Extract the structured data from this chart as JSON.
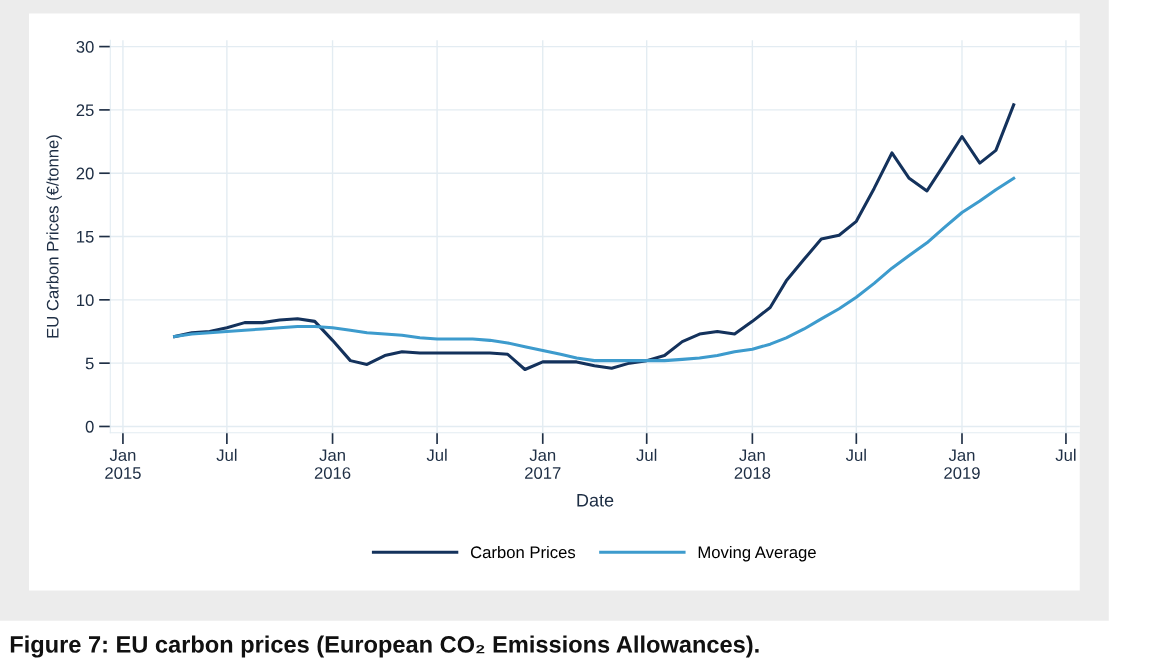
{
  "chart_data": {
    "type": "line",
    "title": "Figure 7: EU carbon prices (European CO₂ Emissions Allowances).",
    "xlabel": "Date",
    "ylabel": "EU Carbon Prices (€/tonne)",
    "x": [
      "2015-04",
      "2015-05",
      "2015-06",
      "2015-07",
      "2015-08",
      "2015-09",
      "2015-10",
      "2015-11",
      "2015-12",
      "2016-01",
      "2016-02",
      "2016-03",
      "2016-04",
      "2016-05",
      "2016-06",
      "2016-07",
      "2016-08",
      "2016-09",
      "2016-10",
      "2016-11",
      "2016-12",
      "2017-01",
      "2017-02",
      "2017-03",
      "2017-04",
      "2017-05",
      "2017-06",
      "2017-07",
      "2017-08",
      "2017-09",
      "2017-10",
      "2017-11",
      "2017-12",
      "2018-01",
      "2018-02",
      "2018-03",
      "2018-04",
      "2018-05",
      "2018-06",
      "2018-07",
      "2018-08",
      "2018-09",
      "2018-10",
      "2018-11",
      "2018-12",
      "2019-01",
      "2019-02",
      "2019-03",
      "2019-04"
    ],
    "series": [
      {
        "name": "Carbon Prices",
        "color": "#14325c",
        "values": [
          7.1,
          7.4,
          7.5,
          7.8,
          8.2,
          8.2,
          8.4,
          8.5,
          8.3,
          6.8,
          5.2,
          4.9,
          5.6,
          5.9,
          5.8,
          5.8,
          5.8,
          5.8,
          5.8,
          5.7,
          4.5,
          5.1,
          5.1,
          5.1,
          4.8,
          4.6,
          5.0,
          5.2,
          5.6,
          6.7,
          7.3,
          7.5,
          7.3,
          8.3,
          9.4,
          11.5,
          13.2,
          14.8,
          15.1,
          16.2,
          18.8,
          21.6,
          19.6,
          18.6,
          20.7,
          22.9,
          20.8,
          21.8,
          25.4
        ]
      },
      {
        "name": "Moving Average",
        "color": "#3d9bcd",
        "values": [
          7.1,
          7.3,
          7.4,
          7.5,
          7.6,
          7.7,
          7.8,
          7.9,
          7.9,
          7.8,
          7.6,
          7.4,
          7.3,
          7.2,
          7.0,
          6.9,
          6.9,
          6.9,
          6.8,
          6.6,
          6.3,
          6.0,
          5.7,
          5.4,
          5.2,
          5.2,
          5.2,
          5.2,
          5.2,
          5.3,
          5.4,
          5.6,
          5.9,
          6.1,
          6.5,
          7.0,
          7.7,
          8.5,
          9.3,
          10.2,
          11.3,
          12.5,
          13.5,
          14.5,
          15.7,
          16.9,
          17.8,
          18.7,
          19.6
        ]
      }
    ],
    "xlim": [
      "2014-12-10",
      "2019-07-25"
    ],
    "xticks": [
      {
        "value": "2015-01-01",
        "label": "Jan\n2015"
      },
      {
        "value": "2015-07-01",
        "label": "Jul"
      },
      {
        "value": "2016-01-01",
        "label": "Jan\n2016"
      },
      {
        "value": "2016-07-01",
        "label": "Jul"
      },
      {
        "value": "2017-01-01",
        "label": "Jan\n2017"
      },
      {
        "value": "2017-07-01",
        "label": "Jul"
      },
      {
        "value": "2018-01-01",
        "label": "Jan\n2018"
      },
      {
        "value": "2018-07-01",
        "label": "Jul"
      },
      {
        "value": "2019-01-01",
        "label": "Jan\n2019"
      },
      {
        "value": "2019-07-01",
        "label": "Jul"
      }
    ],
    "ylim": [
      -0.5,
      30.5
    ],
    "yticks": [
      0,
      5,
      10,
      15,
      20,
      25,
      30
    ],
    "grid": true,
    "legend": "bottom",
    "marker": "none",
    "line_style": "solid"
  }
}
